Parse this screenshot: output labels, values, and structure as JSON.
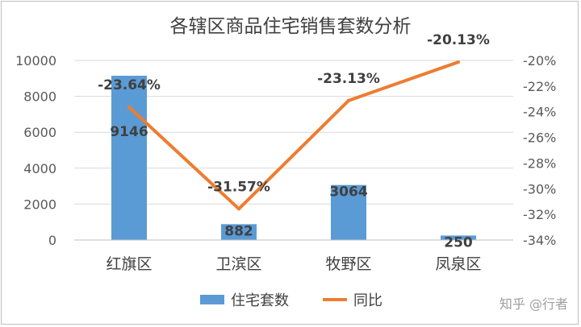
{
  "chart_data": {
    "type": "bar",
    "title": "各辖区商品住宅销售套数分析",
    "categories": [
      "红旗区",
      "卫滨区",
      "牧野区",
      "凤泉区"
    ],
    "series": [
      {
        "name": "住宅套数",
        "type": "bar",
        "axis": "left",
        "color": "#5b9bd5",
        "values": [
          9146,
          882,
          3064,
          250
        ],
        "data_labels": [
          "9146",
          "882",
          "3064",
          "250"
        ]
      },
      {
        "name": "同比",
        "type": "line",
        "axis": "right",
        "color": "#ed7d31",
        "values": [
          -23.64,
          -31.57,
          -23.13,
          -20.13
        ],
        "data_labels": [
          "-23.64%",
          "-31.57%",
          "-23.13%",
          "-20.13%"
        ]
      }
    ],
    "y_left": {
      "min": 0,
      "max": 10000,
      "ticks": [
        "0",
        "2000",
        "4000",
        "6000",
        "8000",
        "10000"
      ]
    },
    "y_right": {
      "min": -34,
      "max": -20,
      "ticks": [
        "-34%",
        "-32%",
        "-30%",
        "-28%",
        "-26%",
        "-24%",
        "-22%",
        "-20%"
      ]
    },
    "grid": true,
    "legend_position": "bottom"
  },
  "watermark": "知乎 @行者"
}
